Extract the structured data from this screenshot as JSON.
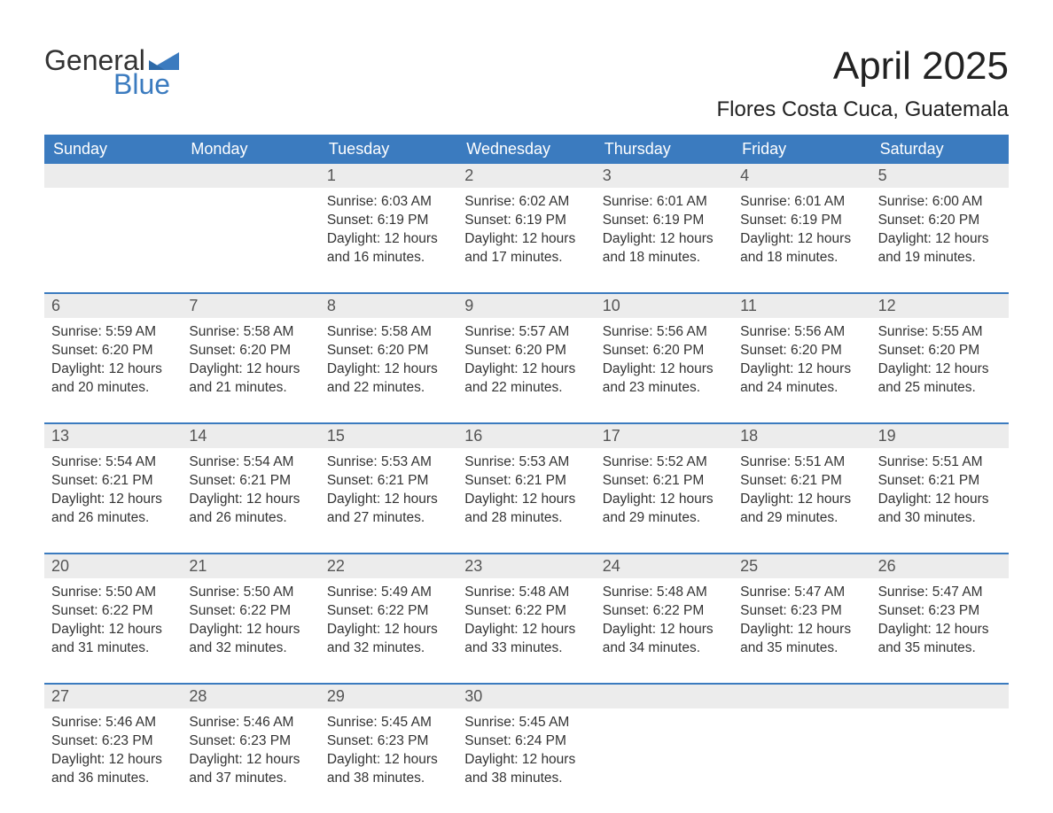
{
  "logo": {
    "word1": "General",
    "word2": "Blue",
    "flag_color": "#3b7bbf",
    "word1_color": "#333333",
    "word2_color": "#3b7bbf"
  },
  "title": "April 2025",
  "location": "Flores Costa Cuca, Guatemala",
  "colors": {
    "header_bg": "#3b7bbf",
    "header_text": "#ffffff",
    "daynum_bg": "#ececec",
    "week_border": "#3b7bbf",
    "body_text": "#333333",
    "background": "#ffffff"
  },
  "font": {
    "family": "Arial",
    "title_size_pt": 33,
    "location_size_pt": 18,
    "dayhead_size_pt": 14,
    "daynum_size_pt": 14,
    "cell_size_pt": 12
  },
  "day_headers": [
    "Sunday",
    "Monday",
    "Tuesday",
    "Wednesday",
    "Thursday",
    "Friday",
    "Saturday"
  ],
  "weeks": [
    [
      null,
      null,
      {
        "n": "1",
        "sunrise": "Sunrise: 6:03 AM",
        "sunset": "Sunset: 6:19 PM",
        "daylight1": "Daylight: 12 hours",
        "daylight2": "and 16 minutes."
      },
      {
        "n": "2",
        "sunrise": "Sunrise: 6:02 AM",
        "sunset": "Sunset: 6:19 PM",
        "daylight1": "Daylight: 12 hours",
        "daylight2": "and 17 minutes."
      },
      {
        "n": "3",
        "sunrise": "Sunrise: 6:01 AM",
        "sunset": "Sunset: 6:19 PM",
        "daylight1": "Daylight: 12 hours",
        "daylight2": "and 18 minutes."
      },
      {
        "n": "4",
        "sunrise": "Sunrise: 6:01 AM",
        "sunset": "Sunset: 6:19 PM",
        "daylight1": "Daylight: 12 hours",
        "daylight2": "and 18 minutes."
      },
      {
        "n": "5",
        "sunrise": "Sunrise: 6:00 AM",
        "sunset": "Sunset: 6:20 PM",
        "daylight1": "Daylight: 12 hours",
        "daylight2": "and 19 minutes."
      }
    ],
    [
      {
        "n": "6",
        "sunrise": "Sunrise: 5:59 AM",
        "sunset": "Sunset: 6:20 PM",
        "daylight1": "Daylight: 12 hours",
        "daylight2": "and 20 minutes."
      },
      {
        "n": "7",
        "sunrise": "Sunrise: 5:58 AM",
        "sunset": "Sunset: 6:20 PM",
        "daylight1": "Daylight: 12 hours",
        "daylight2": "and 21 minutes."
      },
      {
        "n": "8",
        "sunrise": "Sunrise: 5:58 AM",
        "sunset": "Sunset: 6:20 PM",
        "daylight1": "Daylight: 12 hours",
        "daylight2": "and 22 minutes."
      },
      {
        "n": "9",
        "sunrise": "Sunrise: 5:57 AM",
        "sunset": "Sunset: 6:20 PM",
        "daylight1": "Daylight: 12 hours",
        "daylight2": "and 22 minutes."
      },
      {
        "n": "10",
        "sunrise": "Sunrise: 5:56 AM",
        "sunset": "Sunset: 6:20 PM",
        "daylight1": "Daylight: 12 hours",
        "daylight2": "and 23 minutes."
      },
      {
        "n": "11",
        "sunrise": "Sunrise: 5:56 AM",
        "sunset": "Sunset: 6:20 PM",
        "daylight1": "Daylight: 12 hours",
        "daylight2": "and 24 minutes."
      },
      {
        "n": "12",
        "sunrise": "Sunrise: 5:55 AM",
        "sunset": "Sunset: 6:20 PM",
        "daylight1": "Daylight: 12 hours",
        "daylight2": "and 25 minutes."
      }
    ],
    [
      {
        "n": "13",
        "sunrise": "Sunrise: 5:54 AM",
        "sunset": "Sunset: 6:21 PM",
        "daylight1": "Daylight: 12 hours",
        "daylight2": "and 26 minutes."
      },
      {
        "n": "14",
        "sunrise": "Sunrise: 5:54 AM",
        "sunset": "Sunset: 6:21 PM",
        "daylight1": "Daylight: 12 hours",
        "daylight2": "and 26 minutes."
      },
      {
        "n": "15",
        "sunrise": "Sunrise: 5:53 AM",
        "sunset": "Sunset: 6:21 PM",
        "daylight1": "Daylight: 12 hours",
        "daylight2": "and 27 minutes."
      },
      {
        "n": "16",
        "sunrise": "Sunrise: 5:53 AM",
        "sunset": "Sunset: 6:21 PM",
        "daylight1": "Daylight: 12 hours",
        "daylight2": "and 28 minutes."
      },
      {
        "n": "17",
        "sunrise": "Sunrise: 5:52 AM",
        "sunset": "Sunset: 6:21 PM",
        "daylight1": "Daylight: 12 hours",
        "daylight2": "and 29 minutes."
      },
      {
        "n": "18",
        "sunrise": "Sunrise: 5:51 AM",
        "sunset": "Sunset: 6:21 PM",
        "daylight1": "Daylight: 12 hours",
        "daylight2": "and 29 minutes."
      },
      {
        "n": "19",
        "sunrise": "Sunrise: 5:51 AM",
        "sunset": "Sunset: 6:21 PM",
        "daylight1": "Daylight: 12 hours",
        "daylight2": "and 30 minutes."
      }
    ],
    [
      {
        "n": "20",
        "sunrise": "Sunrise: 5:50 AM",
        "sunset": "Sunset: 6:22 PM",
        "daylight1": "Daylight: 12 hours",
        "daylight2": "and 31 minutes."
      },
      {
        "n": "21",
        "sunrise": "Sunrise: 5:50 AM",
        "sunset": "Sunset: 6:22 PM",
        "daylight1": "Daylight: 12 hours",
        "daylight2": "and 32 minutes."
      },
      {
        "n": "22",
        "sunrise": "Sunrise: 5:49 AM",
        "sunset": "Sunset: 6:22 PM",
        "daylight1": "Daylight: 12 hours",
        "daylight2": "and 32 minutes."
      },
      {
        "n": "23",
        "sunrise": "Sunrise: 5:48 AM",
        "sunset": "Sunset: 6:22 PM",
        "daylight1": "Daylight: 12 hours",
        "daylight2": "and 33 minutes."
      },
      {
        "n": "24",
        "sunrise": "Sunrise: 5:48 AM",
        "sunset": "Sunset: 6:22 PM",
        "daylight1": "Daylight: 12 hours",
        "daylight2": "and 34 minutes."
      },
      {
        "n": "25",
        "sunrise": "Sunrise: 5:47 AM",
        "sunset": "Sunset: 6:23 PM",
        "daylight1": "Daylight: 12 hours",
        "daylight2": "and 35 minutes."
      },
      {
        "n": "26",
        "sunrise": "Sunrise: 5:47 AM",
        "sunset": "Sunset: 6:23 PM",
        "daylight1": "Daylight: 12 hours",
        "daylight2": "and 35 minutes."
      }
    ],
    [
      {
        "n": "27",
        "sunrise": "Sunrise: 5:46 AM",
        "sunset": "Sunset: 6:23 PM",
        "daylight1": "Daylight: 12 hours",
        "daylight2": "and 36 minutes."
      },
      {
        "n": "28",
        "sunrise": "Sunrise: 5:46 AM",
        "sunset": "Sunset: 6:23 PM",
        "daylight1": "Daylight: 12 hours",
        "daylight2": "and 37 minutes."
      },
      {
        "n": "29",
        "sunrise": "Sunrise: 5:45 AM",
        "sunset": "Sunset: 6:23 PM",
        "daylight1": "Daylight: 12 hours",
        "daylight2": "and 38 minutes."
      },
      {
        "n": "30",
        "sunrise": "Sunrise: 5:45 AM",
        "sunset": "Sunset: 6:24 PM",
        "daylight1": "Daylight: 12 hours",
        "daylight2": "and 38 minutes."
      },
      null,
      null,
      null
    ]
  ]
}
